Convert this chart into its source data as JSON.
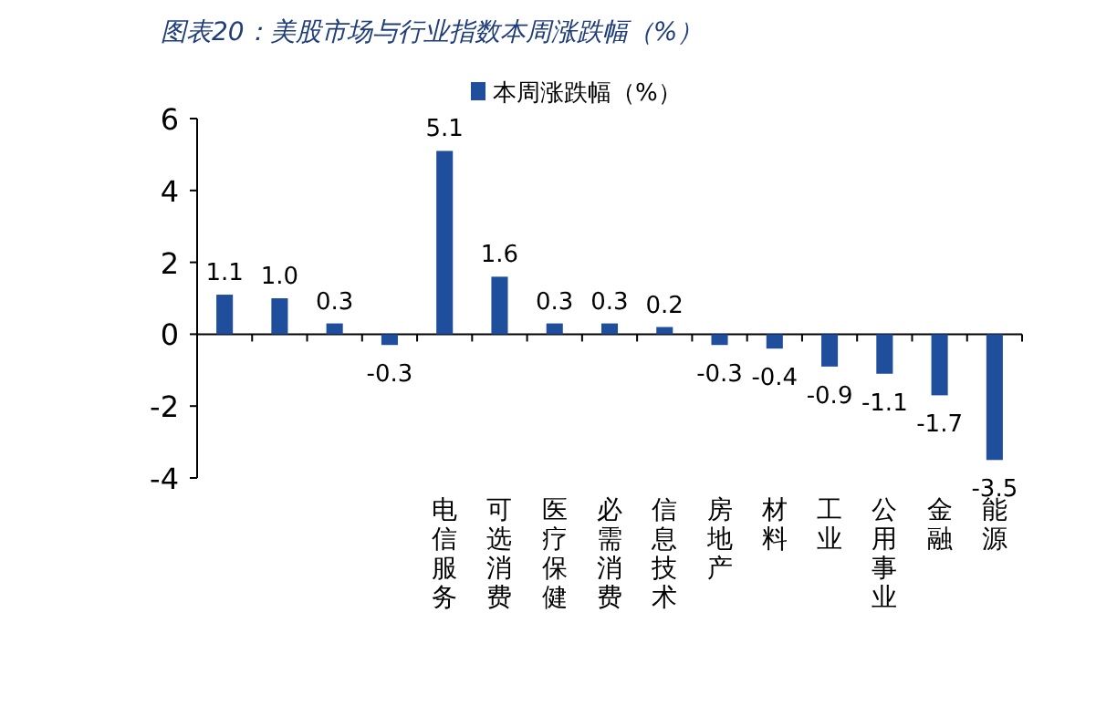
{
  "chart_data": {
    "type": "bar",
    "title": "图表20：美股市场与行业指数本周涨跌幅（%）",
    "categories": [
      null,
      null,
      null,
      null,
      "电信服务",
      "可选消费",
      "医疗保健",
      "必需消费",
      "信息技术",
      "房地产",
      "材料",
      "工业",
      "公用事业",
      "金融",
      "能源"
    ],
    "series": [
      {
        "name": "本周涨跌幅（%）",
        "color": "#1f4e9c",
        "values": [
          1.1,
          1.0,
          0.3,
          -0.3,
          5.1,
          1.6,
          0.3,
          0.3,
          0.2,
          -0.3,
          -0.4,
          -0.9,
          -1.1,
          -1.7,
          -3.5
        ],
        "value_labels": [
          "1.1",
          "1.0",
          "0.3",
          "-0.3",
          "5.1",
          "1.6",
          "0.3",
          "0.3",
          "0.2",
          "-0.3",
          "-0.4",
          "-0.9",
          "-1.1",
          "-1.7",
          "-3.5"
        ]
      }
    ],
    "ylim": [
      -4,
      6
    ],
    "yticks": [
      -4,
      -2,
      0,
      2,
      4,
      6
    ],
    "legend": "top"
  }
}
